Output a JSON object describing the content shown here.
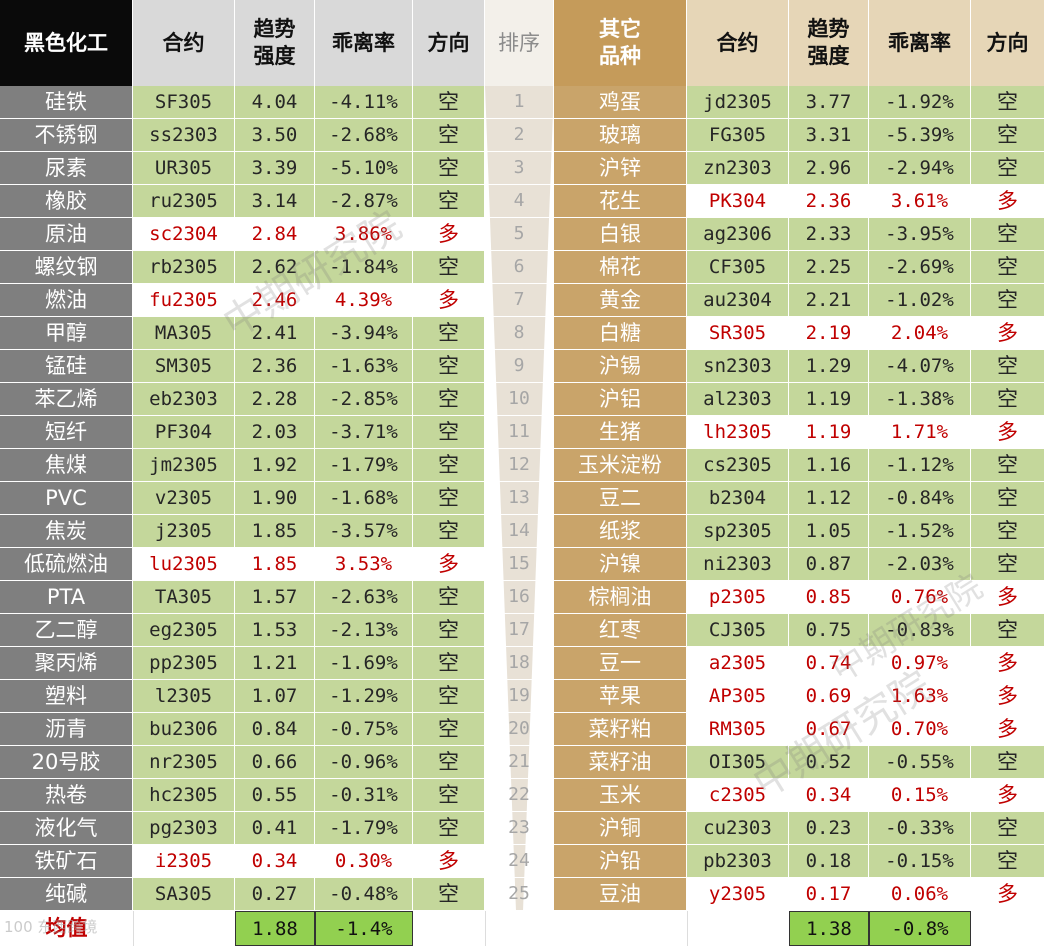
{
  "headers": {
    "left_title": "黑色化工",
    "contract": "合约",
    "trend_strength": [
      "趋势",
      "强度"
    ],
    "deviation": "乖离率",
    "direction": "方向",
    "rank": "排序",
    "right_title": [
      "其它",
      "品种"
    ],
    "contract_r": "合约",
    "trend_strength_r": [
      "趋势",
      "强度"
    ],
    "deviation_r": "乖离率",
    "direction_r": "方向"
  },
  "left_rows": [
    {
      "name": "硅铁",
      "contract": "SF305",
      "strength": "4.04",
      "dev": "-4.11%",
      "dir": "空",
      "hl": false
    },
    {
      "name": "不锈钢",
      "contract": "ss2303",
      "strength": "3.50",
      "dev": "-2.68%",
      "dir": "空",
      "hl": false
    },
    {
      "name": "尿素",
      "contract": "UR305",
      "strength": "3.39",
      "dev": "-5.10%",
      "dir": "空",
      "hl": false
    },
    {
      "name": "橡胶",
      "contract": "ru2305",
      "strength": "3.14",
      "dev": "-2.87%",
      "dir": "空",
      "hl": false
    },
    {
      "name": "原油",
      "contract": "sc2304",
      "strength": "2.84",
      "dev": "3.86%",
      "dir": "多",
      "hl": true
    },
    {
      "name": "螺纹钢",
      "contract": "rb2305",
      "strength": "2.62",
      "dev": "-1.84%",
      "dir": "空",
      "hl": false
    },
    {
      "name": "燃油",
      "contract": "fu2305",
      "strength": "2.46",
      "dev": "4.39%",
      "dir": "多",
      "hl": true
    },
    {
      "name": "甲醇",
      "contract": "MA305",
      "strength": "2.41",
      "dev": "-3.94%",
      "dir": "空",
      "hl": false
    },
    {
      "name": "锰硅",
      "contract": "SM305",
      "strength": "2.36",
      "dev": "-1.63%",
      "dir": "空",
      "hl": false
    },
    {
      "name": "苯乙烯",
      "contract": "eb2303",
      "strength": "2.28",
      "dev": "-2.85%",
      "dir": "空",
      "hl": false
    },
    {
      "name": "短纤",
      "contract": "PF304",
      "strength": "2.03",
      "dev": "-3.71%",
      "dir": "空",
      "hl": false
    },
    {
      "name": "焦煤",
      "contract": "jm2305",
      "strength": "1.92",
      "dev": "-1.79%",
      "dir": "空",
      "hl": false
    },
    {
      "name": "PVC",
      "contract": "v2305",
      "strength": "1.90",
      "dev": "-1.68%",
      "dir": "空",
      "hl": false
    },
    {
      "name": "焦炭",
      "contract": "j2305",
      "strength": "1.85",
      "dev": "-3.57%",
      "dir": "空",
      "hl": false
    },
    {
      "name": "低硫燃油",
      "contract": "lu2305",
      "strength": "1.85",
      "dev": "3.53%",
      "dir": "多",
      "hl": true
    },
    {
      "name": "PTA",
      "contract": "TA305",
      "strength": "1.57",
      "dev": "-2.63%",
      "dir": "空",
      "hl": false
    },
    {
      "name": "乙二醇",
      "contract": "eg2305",
      "strength": "1.53",
      "dev": "-2.13%",
      "dir": "空",
      "hl": false
    },
    {
      "name": "聚丙烯",
      "contract": "pp2305",
      "strength": "1.21",
      "dev": "-1.69%",
      "dir": "空",
      "hl": false
    },
    {
      "name": "塑料",
      "contract": "l2305",
      "strength": "1.07",
      "dev": "-1.29%",
      "dir": "空",
      "hl": false
    },
    {
      "name": "沥青",
      "contract": "bu2306",
      "strength": "0.84",
      "dev": "-0.75%",
      "dir": "空",
      "hl": false
    },
    {
      "name": "20号胶",
      "contract": "nr2305",
      "strength": "0.66",
      "dev": "-0.96%",
      "dir": "空",
      "hl": false
    },
    {
      "name": "热卷",
      "contract": "hc2305",
      "strength": "0.55",
      "dev": "-0.31%",
      "dir": "空",
      "hl": false
    },
    {
      "name": "液化气",
      "contract": "pg2303",
      "strength": "0.41",
      "dev": "-1.79%",
      "dir": "空",
      "hl": false
    },
    {
      "name": "铁矿石",
      "contract": "i2305",
      "strength": "0.34",
      "dev": "0.30%",
      "dir": "多",
      "hl": true
    },
    {
      "name": "纯碱",
      "contract": "SA305",
      "strength": "0.27",
      "dev": "-0.48%",
      "dir": "空",
      "hl": false
    }
  ],
  "ranks": [
    "1",
    "2",
    "3",
    "4",
    "5",
    "6",
    "7",
    "8",
    "9",
    "10",
    "11",
    "12",
    "13",
    "14",
    "15",
    "16",
    "17",
    "18",
    "19",
    "20",
    "21",
    "22",
    "23",
    "24",
    "25"
  ],
  "right_rows": [
    {
      "name": "鸡蛋",
      "contract": "jd2305",
      "strength": "3.77",
      "dev": "-1.92%",
      "dir": "空",
      "hl": false
    },
    {
      "name": "玻璃",
      "contract": "FG305",
      "strength": "3.31",
      "dev": "-5.39%",
      "dir": "空",
      "hl": false
    },
    {
      "name": "沪锌",
      "contract": "zn2303",
      "strength": "2.96",
      "dev": "-2.94%",
      "dir": "空",
      "hl": false
    },
    {
      "name": "花生",
      "contract": "PK304",
      "strength": "2.36",
      "dev": "3.61%",
      "dir": "多",
      "hl": true
    },
    {
      "name": "白银",
      "contract": "ag2306",
      "strength": "2.33",
      "dev": "-3.95%",
      "dir": "空",
      "hl": false
    },
    {
      "name": "棉花",
      "contract": "CF305",
      "strength": "2.25",
      "dev": "-2.69%",
      "dir": "空",
      "hl": false
    },
    {
      "name": "黄金",
      "contract": "au2304",
      "strength": "2.21",
      "dev": "-1.02%",
      "dir": "空",
      "hl": false
    },
    {
      "name": "白糖",
      "contract": "SR305",
      "strength": "2.19",
      "dev": "2.04%",
      "dir": "多",
      "hl": true
    },
    {
      "name": "沪锡",
      "contract": "sn2303",
      "strength": "1.29",
      "dev": "-4.07%",
      "dir": "空",
      "hl": false
    },
    {
      "name": "沪铝",
      "contract": "al2303",
      "strength": "1.19",
      "dev": "-1.38%",
      "dir": "空",
      "hl": false
    },
    {
      "name": "生猪",
      "contract": "lh2305",
      "strength": "1.19",
      "dev": "1.71%",
      "dir": "多",
      "hl": true
    },
    {
      "name": "玉米淀粉",
      "contract": "cs2305",
      "strength": "1.16",
      "dev": "-1.12%",
      "dir": "空",
      "hl": false
    },
    {
      "name": "豆二",
      "contract": "b2304",
      "strength": "1.12",
      "dev": "-0.84%",
      "dir": "空",
      "hl": false
    },
    {
      "name": "纸浆",
      "contract": "sp2305",
      "strength": "1.05",
      "dev": "-1.52%",
      "dir": "空",
      "hl": false
    },
    {
      "name": "沪镍",
      "contract": "ni2303",
      "strength": "0.87",
      "dev": "-2.03%",
      "dir": "空",
      "hl": false
    },
    {
      "name": "棕榈油",
      "contract": "p2305",
      "strength": "0.85",
      "dev": "0.76%",
      "dir": "多",
      "hl": true
    },
    {
      "name": "红枣",
      "contract": "CJ305",
      "strength": "0.75",
      "dev": "-0.83%",
      "dir": "空",
      "hl": false
    },
    {
      "name": "豆一",
      "contract": "a2305",
      "strength": "0.74",
      "dev": "0.97%",
      "dir": "多",
      "hl": true
    },
    {
      "name": "苹果",
      "contract": "AP305",
      "strength": "0.69",
      "dev": "1.63%",
      "dir": "多",
      "hl": true
    },
    {
      "name": "菜籽粕",
      "contract": "RM305",
      "strength": "0.67",
      "dev": "0.70%",
      "dir": "多",
      "hl": true
    },
    {
      "name": "菜籽油",
      "contract": "OI305",
      "strength": "0.52",
      "dev": "-0.55%",
      "dir": "空",
      "hl": false
    },
    {
      "name": "玉米",
      "contract": "c2305",
      "strength": "0.34",
      "dev": "0.15%",
      "dir": "多",
      "hl": true
    },
    {
      "name": "沪铜",
      "contract": "cu2303",
      "strength": "0.23",
      "dev": "-0.33%",
      "dir": "空",
      "hl": false
    },
    {
      "name": "沪铅",
      "contract": "pb2303",
      "strength": "0.18",
      "dev": "-0.15%",
      "dir": "空",
      "hl": false
    },
    {
      "name": "豆油",
      "contract": "y2305",
      "strength": "0.17",
      "dev": "0.06%",
      "dir": "多",
      "hl": true
    }
  ],
  "average": {
    "label": "均值",
    "left_strength": "1.88",
    "left_dev": "-1.4%",
    "right_strength": "1.38",
    "right_dev": "-0.8%"
  },
  "watermarks": [
    "中期研究院",
    "中期研究院",
    "中期研究院"
  ],
  "corner_mark": "100 东西跨境"
}
